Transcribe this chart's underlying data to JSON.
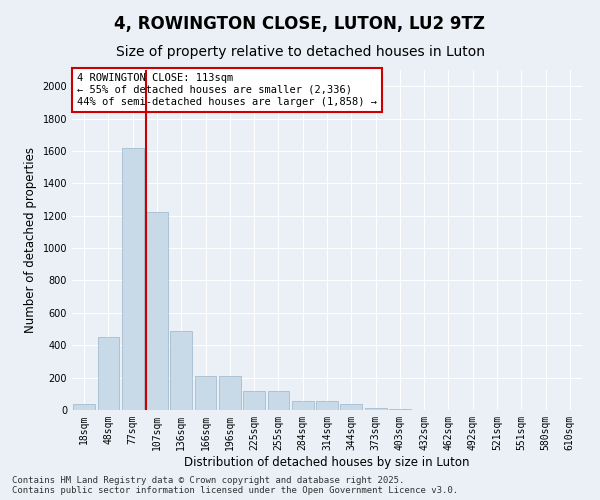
{
  "title": "4, ROWINGTON CLOSE, LUTON, LU2 9TZ",
  "subtitle": "Size of property relative to detached houses in Luton",
  "xlabel": "Distribution of detached houses by size in Luton",
  "ylabel": "Number of detached properties",
  "categories": [
    "18sqm",
    "48sqm",
    "77sqm",
    "107sqm",
    "136sqm",
    "166sqm",
    "196sqm",
    "225sqm",
    "255sqm",
    "284sqm",
    "314sqm",
    "344sqm",
    "373sqm",
    "403sqm",
    "432sqm",
    "462sqm",
    "492sqm",
    "521sqm",
    "551sqm",
    "580sqm",
    "610sqm"
  ],
  "values": [
    40,
    450,
    1620,
    1220,
    490,
    210,
    210,
    120,
    120,
    55,
    55,
    35,
    10,
    5,
    2,
    1,
    0,
    0,
    0,
    0,
    0
  ],
  "bar_color": "#c8d9e8",
  "bar_edge_color": "#9ab5cc",
  "vline_x_index": 3,
  "vline_color": "#cc0000",
  "annotation_text": "4 ROWINGTON CLOSE: 113sqm\n← 55% of detached houses are smaller (2,336)\n44% of semi-detached houses are larger (1,858) →",
  "annotation_box_color": "#ffffff",
  "annotation_box_edge": "#cc0000",
  "ylim": [
    0,
    2100
  ],
  "yticks": [
    0,
    200,
    400,
    600,
    800,
    1000,
    1200,
    1400,
    1600,
    1800,
    2000
  ],
  "background_color": "#eaf0f6",
  "grid_color": "#ffffff",
  "footer": "Contains HM Land Registry data © Crown copyright and database right 2025.\nContains public sector information licensed under the Open Government Licence v3.0.",
  "title_fontsize": 12,
  "subtitle_fontsize": 10,
  "label_fontsize": 8.5,
  "tick_fontsize": 7,
  "footer_fontsize": 6.5,
  "annotation_fontsize": 7.5
}
